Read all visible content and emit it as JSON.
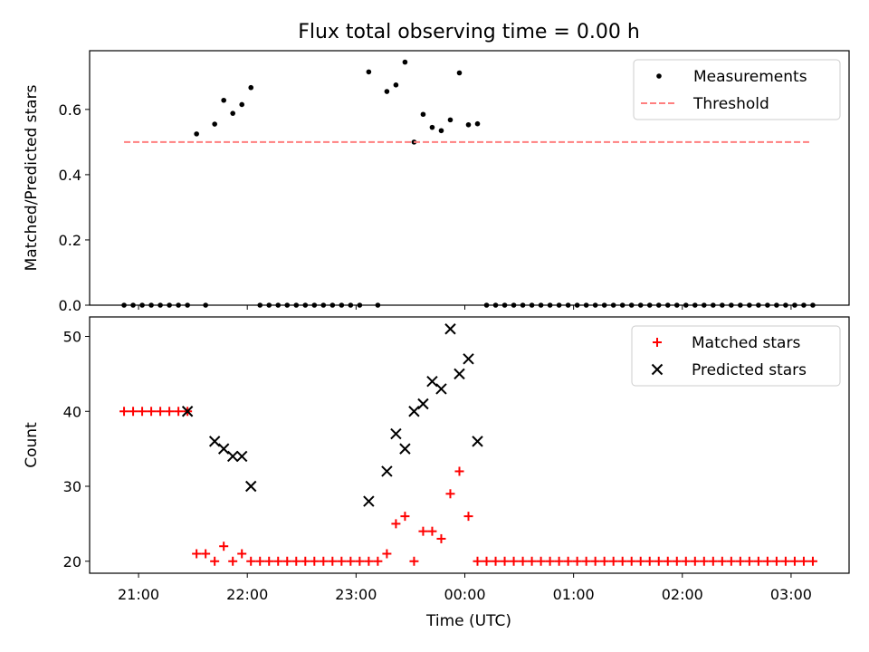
{
  "figure": {
    "title": "Flux total observing time = 0.00 h"
  },
  "x_axis": {
    "label": "Time (UTC)",
    "ticks": [
      "21:00",
      "22:00",
      "23:00",
      "00:00",
      "01:00",
      "02:00",
      "03:00"
    ]
  },
  "chart_data": [
    {
      "type": "scatter",
      "ylabel": "Matched/Predicted stars",
      "ylim": [
        0,
        0.78
      ],
      "yticks": [
        "0.0",
        "0.2",
        "0.4",
        "0.6"
      ],
      "xlim_minutes_from_21": [
        -27,
        392
      ],
      "legend": {
        "placement": "top-right",
        "entries": [
          "Measurements",
          "Threshold"
        ]
      },
      "series": [
        {
          "name": "Measurements",
          "marker": "dot",
          "color": "#000000",
          "points": [
            [
              -8,
              0
            ],
            [
              -3,
              0
            ],
            [
              2,
              0
            ],
            [
              7,
              0
            ],
            [
              12,
              0
            ],
            [
              17,
              0
            ],
            [
              22,
              0
            ],
            [
              27,
              0
            ],
            [
              32,
              0.525
            ],
            [
              37,
              0
            ],
            [
              42,
              0.555
            ],
            [
              47,
              0.628
            ],
            [
              52,
              0.588
            ],
            [
              57,
              0.615
            ],
            [
              62,
              0.667
            ],
            [
              67,
              0
            ],
            [
              72,
              0
            ],
            [
              77,
              0
            ],
            [
              82,
              0
            ],
            [
              87,
              0
            ],
            [
              92,
              0
            ],
            [
              97,
              0
            ],
            [
              102,
              0
            ],
            [
              107,
              0
            ],
            [
              112,
              0
            ],
            [
              117,
              0
            ],
            [
              122,
              0
            ],
            [
              127,
              0.715
            ],
            [
              132,
              0
            ],
            [
              137,
              0.655
            ],
            [
              142,
              0.675
            ],
            [
              147,
              0.745
            ],
            [
              152,
              0.5
            ],
            [
              157,
              0.585
            ],
            [
              162,
              0.545
            ],
            [
              167,
              0.535
            ],
            [
              172,
              0.568
            ],
            [
              177,
              0.712
            ],
            [
              182,
              0.553
            ],
            [
              187,
              0.556
            ],
            [
              192,
              0
            ],
            [
              197,
              0
            ],
            [
              202,
              0
            ],
            [
              207,
              0
            ],
            [
              212,
              0
            ],
            [
              217,
              0
            ],
            [
              222,
              0
            ],
            [
              227,
              0
            ],
            [
              232,
              0
            ],
            [
              237,
              0
            ],
            [
              242,
              0
            ],
            [
              247,
              0
            ],
            [
              252,
              0
            ],
            [
              257,
              0
            ],
            [
              262,
              0
            ],
            [
              267,
              0
            ],
            [
              272,
              0
            ],
            [
              277,
              0
            ],
            [
              282,
              0
            ],
            [
              287,
              0
            ],
            [
              292,
              0
            ],
            [
              297,
              0
            ],
            [
              302,
              0
            ],
            [
              307,
              0
            ],
            [
              312,
              0
            ],
            [
              317,
              0
            ],
            [
              322,
              0
            ],
            [
              327,
              0
            ],
            [
              332,
              0
            ],
            [
              337,
              0
            ],
            [
              342,
              0
            ],
            [
              347,
              0
            ],
            [
              352,
              0
            ],
            [
              357,
              0
            ],
            [
              362,
              0
            ],
            [
              367,
              0
            ],
            [
              372,
              0
            ]
          ]
        },
        {
          "name": "Threshold",
          "style": "dashed",
          "color": "#ff7f7f",
          "x": [
            -8,
            370
          ],
          "y": [
            0.5,
            0.5
          ]
        }
      ]
    },
    {
      "type": "scatter",
      "ylabel": "Count",
      "ylim": [
        18.4,
        52.6
      ],
      "yticks": [
        "20",
        "30",
        "40",
        "50"
      ],
      "xlim_minutes_from_21": [
        -27,
        392
      ],
      "legend": {
        "placement": "top-right",
        "entries": [
          "Matched stars",
          "Predicted stars"
        ]
      },
      "series": [
        {
          "name": "Matched stars",
          "marker": "plus",
          "color": "#ff0000",
          "points": [
            [
              -8,
              40
            ],
            [
              -3,
              40
            ],
            [
              2,
              40
            ],
            [
              7,
              40
            ],
            [
              12,
              40
            ],
            [
              17,
              40
            ],
            [
              22,
              40
            ],
            [
              27,
              40
            ],
            [
              32,
              21
            ],
            [
              37,
              21
            ],
            [
              42,
              20
            ],
            [
              47,
              22
            ],
            [
              52,
              20
            ],
            [
              57,
              21
            ],
            [
              62,
              20
            ],
            [
              67,
              20
            ],
            [
              72,
              20
            ],
            [
              77,
              20
            ],
            [
              82,
              20
            ],
            [
              87,
              20
            ],
            [
              92,
              20
            ],
            [
              97,
              20
            ],
            [
              102,
              20
            ],
            [
              107,
              20
            ],
            [
              112,
              20
            ],
            [
              117,
              20
            ],
            [
              122,
              20
            ],
            [
              127,
              20
            ],
            [
              132,
              20
            ],
            [
              137,
              21
            ],
            [
              142,
              25
            ],
            [
              147,
              26
            ],
            [
              152,
              20
            ],
            [
              157,
              24
            ],
            [
              162,
              24
            ],
            [
              167,
              23
            ],
            [
              172,
              29
            ],
            [
              177,
              32
            ],
            [
              182,
              26
            ],
            [
              187,
              20
            ],
            [
              192,
              20
            ],
            [
              197,
              20
            ],
            [
              202,
              20
            ],
            [
              207,
              20
            ],
            [
              212,
              20
            ],
            [
              217,
              20
            ],
            [
              222,
              20
            ],
            [
              227,
              20
            ],
            [
              232,
              20
            ],
            [
              237,
              20
            ],
            [
              242,
              20
            ],
            [
              247,
              20
            ],
            [
              252,
              20
            ],
            [
              257,
              20
            ],
            [
              262,
              20
            ],
            [
              267,
              20
            ],
            [
              272,
              20
            ],
            [
              277,
              20
            ],
            [
              282,
              20
            ],
            [
              287,
              20
            ],
            [
              292,
              20
            ],
            [
              297,
              20
            ],
            [
              302,
              20
            ],
            [
              307,
              20
            ],
            [
              312,
              20
            ],
            [
              317,
              20
            ],
            [
              322,
              20
            ],
            [
              327,
              20
            ],
            [
              332,
              20
            ],
            [
              337,
              20
            ],
            [
              342,
              20
            ],
            [
              347,
              20
            ],
            [
              352,
              20
            ],
            [
              357,
              20
            ],
            [
              362,
              20
            ],
            [
              367,
              20
            ],
            [
              372,
              20
            ]
          ]
        },
        {
          "name": "Predicted stars",
          "marker": "x",
          "color": "#000000",
          "points": [
            [
              27,
              40
            ],
            [
              42,
              36
            ],
            [
              47,
              35
            ],
            [
              52,
              34
            ],
            [
              57,
              34
            ],
            [
              62,
              30
            ],
            [
              127,
              28
            ],
            [
              137,
              32
            ],
            [
              142,
              37
            ],
            [
              147,
              35
            ],
            [
              152,
              40
            ],
            [
              157,
              41
            ],
            [
              162,
              44
            ],
            [
              167,
              43
            ],
            [
              172,
              51
            ],
            [
              177,
              45
            ],
            [
              182,
              47
            ],
            [
              187,
              36
            ]
          ]
        }
      ]
    }
  ]
}
